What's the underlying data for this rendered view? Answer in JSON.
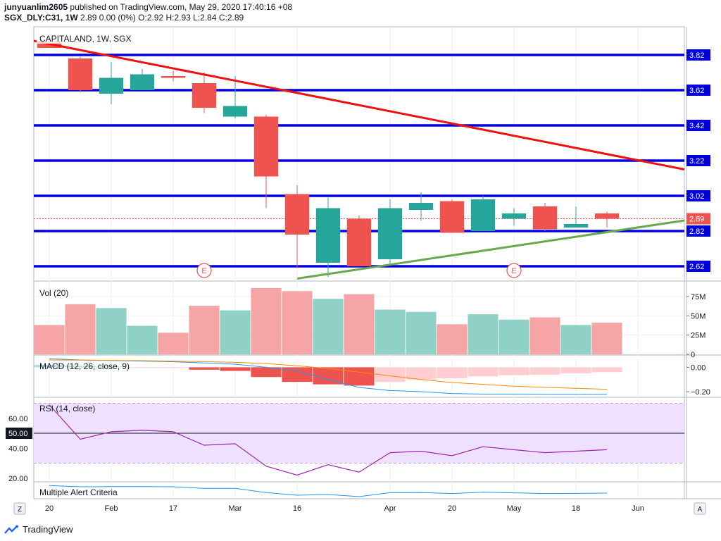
{
  "header": {
    "user": "junyuanlim2605",
    "published": "published on TradingView.com, May 29, 2020 17:40:16 +08",
    "symbol_line": "SGX_DLY:C31, 1W",
    "ohlc": "2.89 0.00 (0%) O:2.92 H:2.93 L:2.84 C:2.89"
  },
  "footer": {
    "brand": "TradingView"
  },
  "colors": {
    "up": "#26a69a",
    "down": "#ef5350",
    "level": "#0000dd",
    "trend_down": "#ee1111",
    "trend_up": "#6aa84f",
    "vol_up": "#8fd1c7",
    "vol_down": "#f5a5a5",
    "macd_line": "#2196f3",
    "signal_line": "#ff8a00",
    "rsi_line": "#9c27b0",
    "rsi_band": "#f0e0ff",
    "alert_line": "#2196f3"
  },
  "chart_data": [
    {
      "type": "candlestick",
      "title": "CAPITALAND, 1W, SGX",
      "ylim": [
        2.54,
        3.98
      ],
      "xlim": [
        -0.5,
        20.5
      ],
      "x_ticks": [
        {
          "i": 0,
          "label": "20"
        },
        {
          "i": 2,
          "label": "Feb"
        },
        {
          "i": 4,
          "label": "17"
        },
        {
          "i": 6,
          "label": "Mar"
        },
        {
          "i": 8,
          "label": "16"
        },
        {
          "i": 11,
          "label": "Apr"
        },
        {
          "i": 13,
          "label": "20"
        },
        {
          "i": 15,
          "label": "May"
        },
        {
          "i": 17,
          "label": "18"
        },
        {
          "i": 19,
          "label": "Jun"
        }
      ],
      "price_levels": [
        3.82,
        3.62,
        3.42,
        3.22,
        3.02,
        2.82,
        2.62
      ],
      "price_level_labels": [
        "3.82",
        "3.62",
        "3.42",
        "3.22",
        "3.02",
        "2.82",
        "2.62"
      ],
      "last_price": 2.89,
      "last_price_label": "2.89",
      "trendlines": [
        {
          "name": "downtrend",
          "x1": -0.5,
          "y1": 3.9,
          "x2": 20.5,
          "y2": 3.17
        },
        {
          "name": "uptrend",
          "x1": 8.0,
          "y1": 2.55,
          "x2": 20.5,
          "y2": 2.88
        }
      ],
      "events": [
        {
          "i": 5,
          "label": "E"
        },
        {
          "i": 15,
          "label": "E"
        }
      ],
      "candles": [
        {
          "o": 3.9,
          "h": 3.9,
          "l": 3.87,
          "c": 3.86
        },
        {
          "o": 3.8,
          "h": 3.81,
          "l": 3.61,
          "c": 3.62
        },
        {
          "o": 3.6,
          "h": 3.78,
          "l": 3.54,
          "c": 3.69
        },
        {
          "o": 3.62,
          "h": 3.74,
          "l": 3.62,
          "c": 3.71
        },
        {
          "o": 3.7,
          "h": 3.73,
          "l": 3.67,
          "c": 3.69
        },
        {
          "o": 3.66,
          "h": 3.72,
          "l": 3.49,
          "c": 3.52
        },
        {
          "o": 3.47,
          "h": 3.7,
          "l": 3.46,
          "c": 3.53
        },
        {
          "o": 3.47,
          "h": 3.48,
          "l": 2.95,
          "c": 3.13
        },
        {
          "o": 3.03,
          "h": 3.08,
          "l": 2.61,
          "c": 2.8
        },
        {
          "o": 2.64,
          "h": 3.01,
          "l": 2.56,
          "c": 2.95
        },
        {
          "o": 2.89,
          "h": 2.91,
          "l": 2.62,
          "c": 2.62
        },
        {
          "o": 2.66,
          "h": 3.0,
          "l": 2.63,
          "c": 2.95
        },
        {
          "o": 2.94,
          "h": 3.04,
          "l": 2.88,
          "c": 2.98
        },
        {
          "o": 2.99,
          "h": 3.0,
          "l": 2.81,
          "c": 2.81
        },
        {
          "o": 2.82,
          "h": 3.02,
          "l": 2.82,
          "c": 3.0
        },
        {
          "o": 2.89,
          "h": 2.95,
          "l": 2.85,
          "c": 2.92
        },
        {
          "o": 2.96,
          "h": 2.98,
          "l": 2.82,
          "c": 2.83
        },
        {
          "o": 2.84,
          "h": 2.96,
          "l": 2.84,
          "c": 2.86
        },
        {
          "o": 2.92,
          "h": 2.93,
          "l": 2.84,
          "c": 2.89
        }
      ]
    },
    {
      "type": "bar",
      "title": "Vol (20)",
      "ylim": [
        0,
        95000000
      ],
      "y_ticks": [
        {
          "v": 75000000,
          "label": "75M"
        },
        {
          "v": 50000000,
          "label": "50M"
        },
        {
          "v": 25000000,
          "label": "25M"
        },
        {
          "v": 0,
          "label": "0"
        }
      ],
      "values": [
        38000000,
        65000000,
        60000000,
        37000000,
        28000000,
        63000000,
        57000000,
        86000000,
        82000000,
        72000000,
        78000000,
        58000000,
        55000000,
        39000000,
        52000000,
        45000000,
        48000000,
        38000000,
        41000000
      ]
    },
    {
      "type": "line",
      "title": "MACD (12, 26, close, 9)",
      "ylim": [
        -0.24,
        0.1
      ],
      "y_ticks": [
        {
          "v": 0.0,
          "label": "0.00"
        },
        {
          "v": -0.2,
          "label": "−0.20"
        }
      ],
      "histogram": [
        0.02,
        0.012,
        0.006,
        -0.003,
        -0.006,
        -0.02,
        -0.03,
        -0.08,
        -0.12,
        -0.14,
        -0.15,
        -0.12,
        -0.1,
        -0.09,
        -0.075,
        -0.065,
        -0.06,
        -0.05,
        -0.04
      ],
      "macd": [
        0.07,
        0.06,
        0.055,
        0.05,
        0.045,
        0.035,
        0.025,
        0.0,
        -0.03,
        -0.1,
        -0.165,
        -0.19,
        -0.2,
        -0.215,
        -0.22,
        -0.22,
        -0.222,
        -0.222,
        -0.222
      ],
      "signal": [
        0.06,
        0.058,
        0.056,
        0.054,
        0.05,
        0.046,
        0.04,
        0.03,
        0.012,
        -0.01,
        -0.04,
        -0.07,
        -0.1,
        -0.125,
        -0.14,
        -0.155,
        -0.165,
        -0.172,
        -0.18
      ]
    },
    {
      "type": "line",
      "title": "RSI (14, close)",
      "ylim": [
        18,
        74
      ],
      "y_ticks": [
        {
          "v": 60,
          "label": "60.00"
        },
        {
          "v": 50,
          "label": "50.00"
        },
        {
          "v": 40,
          "label": "40.00"
        },
        {
          "v": 20,
          "label": "20.00"
        }
      ],
      "band": [
        30,
        70
      ],
      "midline": 50,
      "values": [
        69,
        46,
        51,
        52,
        51,
        42,
        43,
        28,
        22,
        29,
        24,
        37,
        38,
        35,
        41,
        39,
        37,
        38,
        39
      ]
    },
    {
      "type": "line",
      "title": "Multiple Alert Criteria",
      "ylim": [
        0,
        1
      ],
      "values": [
        0.84,
        0.75,
        0.76,
        0.76,
        0.75,
        0.64,
        0.64,
        0.34,
        0.15,
        0.2,
        0.05,
        0.33,
        0.34,
        0.27,
        0.36,
        0.32,
        0.27,
        0.28,
        0.3
      ]
    }
  ],
  "bottom_buttons": {
    "left": "Z",
    "right": "A"
  }
}
